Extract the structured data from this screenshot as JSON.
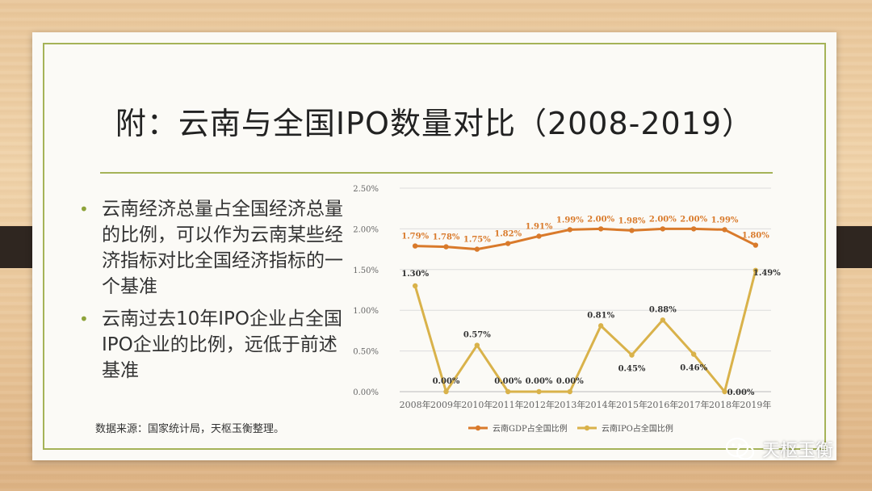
{
  "slide": {
    "title": "附：云南与全国IPO数量对比（2008-2019）",
    "bullets": [
      "云南经济总量占全国经济总量的比例，可以作为云南某些经济指标对比全国经济指标的一个基准",
      "云南过去10年IPO企业占全国IPO企业的比例，远低于前述基准"
    ],
    "source": "数据来源：国家统计局，天枢玉衡整理。",
    "watermark": "天枢玉衡"
  },
  "colors": {
    "gdp_series": "#d97a2b",
    "ipo_series": "#d9b24a",
    "accent_green": "#a5b358"
  },
  "chart_data": {
    "type": "line",
    "x": [
      "2008年",
      "2009年",
      "2010年",
      "2011年",
      "2012年",
      "2013年",
      "2014年",
      "2015年",
      "2016年",
      "2017年",
      "2018年",
      "2019年"
    ],
    "ylim": [
      0,
      2.5
    ],
    "yticks": [
      "0.00%",
      "0.50%",
      "1.00%",
      "1.50%",
      "2.00%",
      "2.50%"
    ],
    "grid": true,
    "legend_position": "bottom",
    "series": [
      {
        "name": "云南GDP占全国比例",
        "values": [
          1.79,
          1.78,
          1.75,
          1.82,
          1.91,
          1.99,
          2.0,
          1.98,
          2.0,
          2.0,
          1.99,
          1.8
        ],
        "labels": [
          "1.79%",
          "1.78%",
          "1.75%",
          "1.82%",
          "1.91%",
          "1.99%",
          "2.00%",
          "1.98%",
          "2.00%",
          "2.00%",
          "1.99%",
          "1.80%"
        ]
      },
      {
        "name": "云南IPO占全国比例",
        "values": [
          1.3,
          0.0,
          0.57,
          0.0,
          0.0,
          0.0,
          0.81,
          0.45,
          0.88,
          0.46,
          0.0,
          1.49
        ],
        "labels": [
          "1.30%",
          "0.00%",
          "0.57%",
          "0.00%",
          "0.00%",
          "0.00%",
          "0.81%",
          "0.45%",
          "0.88%",
          "0.46%",
          "0.00%",
          "1.49%"
        ]
      }
    ]
  }
}
